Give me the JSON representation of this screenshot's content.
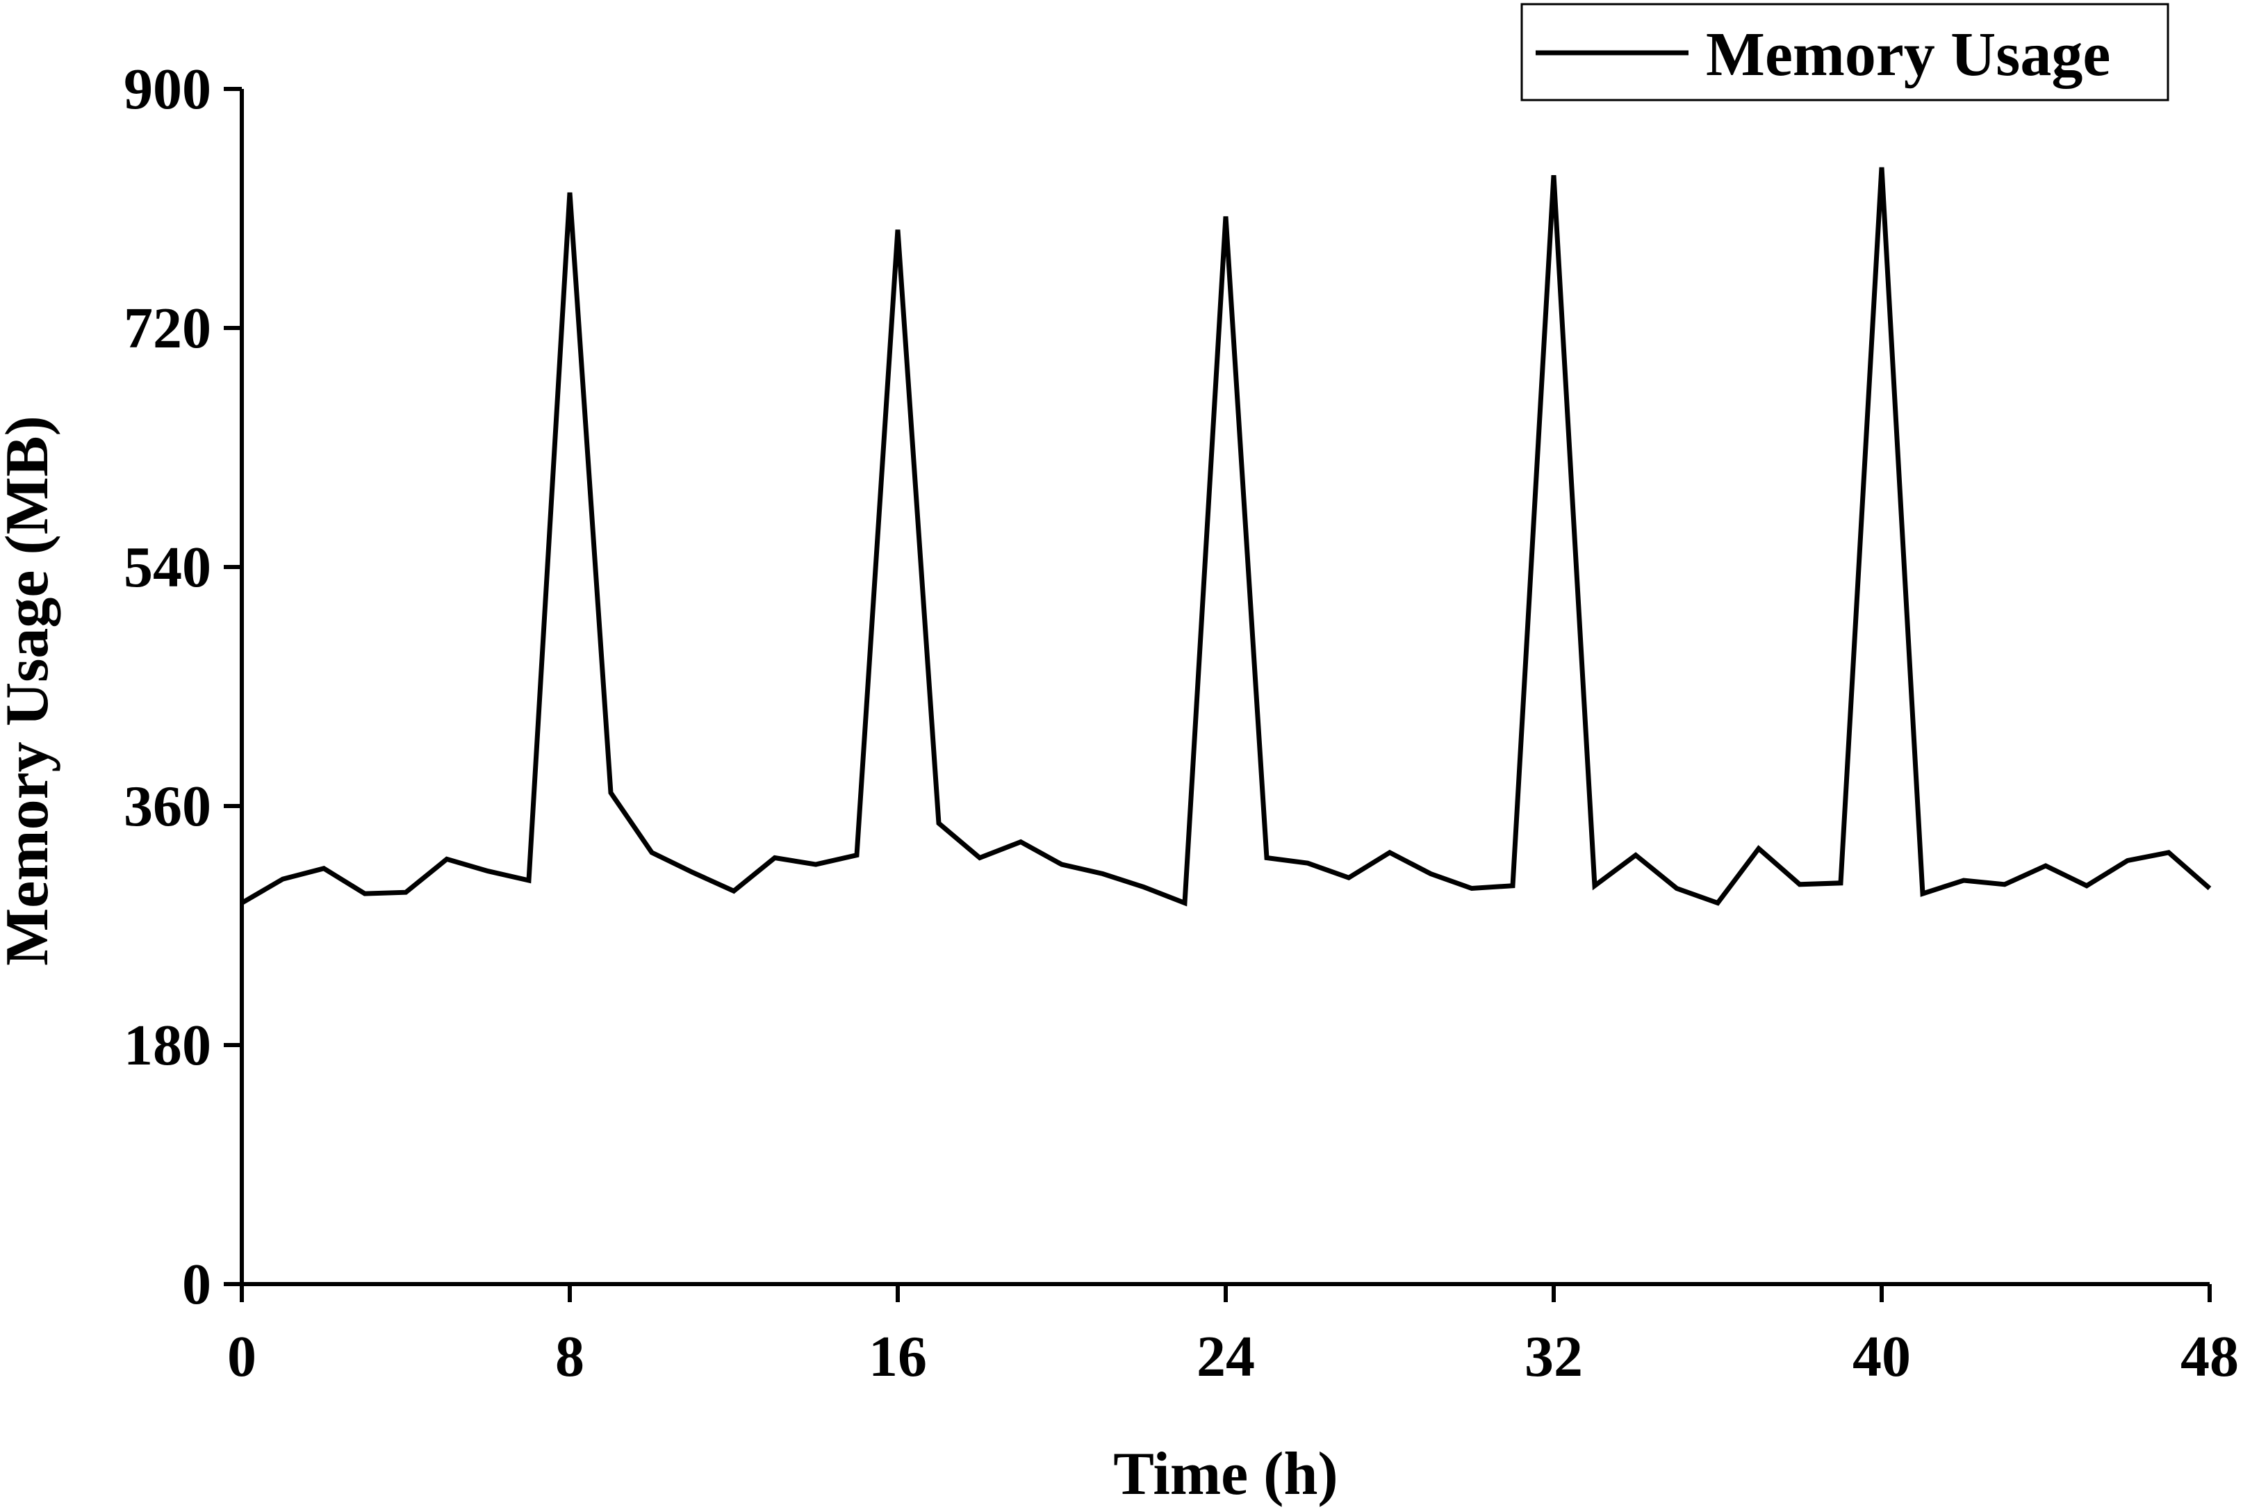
{
  "chart_data": {
    "type": "line",
    "xlabel": "Time (h)",
    "ylabel": "Memory Usage (MB)",
    "xlim": [
      0,
      48
    ],
    "ylim": [
      0,
      900
    ],
    "x_ticks": [
      "0",
      "8",
      "16",
      "24",
      "32",
      "40",
      "48"
    ],
    "y_ticks": [
      "0",
      "180",
      "360",
      "540",
      "720",
      "900"
    ],
    "grid": false,
    "legend": {
      "position": "top-right",
      "entries": [
        "Memory Usage"
      ]
    },
    "series": [
      {
        "name": "Memory Usage",
        "color": "#000000",
        "x": [
          0,
          1,
          2,
          3,
          4,
          5,
          6,
          7,
          8,
          9,
          10,
          11,
          12,
          13,
          14,
          15,
          16,
          17,
          18,
          19,
          20,
          21,
          22,
          23,
          24,
          25,
          26,
          27,
          28,
          29,
          30,
          31,
          32,
          33,
          34,
          35,
          36,
          37,
          38,
          39,
          40,
          41,
          42,
          43,
          44,
          45,
          46,
          47,
          48
        ],
        "values": [
          287,
          305,
          313,
          294,
          295,
          320,
          311,
          304,
          822,
          370,
          325,
          310,
          296,
          321,
          316,
          323,
          794,
          347,
          321,
          333,
          316,
          309,
          299,
          287,
          804,
          321,
          317,
          306,
          325,
          309,
          298,
          300,
          835,
          300,
          323,
          298,
          287,
          328,
          301,
          302,
          841,
          294,
          304,
          301,
          315,
          300,
          319,
          325,
          298
        ]
      }
    ]
  }
}
